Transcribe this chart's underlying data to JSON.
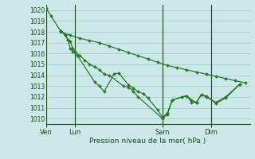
{
  "bg_color": "#cce8e8",
  "grid_color": "#99ccbb",
  "line_color": "#1a6b1a",
  "marker_color": "#2a7a2a",
  "xlabel": "Pression niveau de la mer( hPa )",
  "ylim": [
    1009.5,
    1020.5
  ],
  "yticks": [
    1010,
    1011,
    1012,
    1013,
    1014,
    1015,
    1016,
    1017,
    1018,
    1019,
    1020
  ],
  "xtick_labels": [
    "Ven",
    "Lun",
    "Sam",
    "Dim"
  ],
  "xtick_positions": [
    0,
    12,
    48,
    68
  ],
  "vline_positions": [
    0,
    12,
    48,
    68
  ],
  "xlim": [
    0,
    84
  ],
  "series": [
    [
      1020.2,
      1019.5,
      1018.1,
      1017.7,
      1017.3,
      1017.1,
      1016.5,
      1016.2,
      1015.8,
      1015.4,
      1015.0,
      1014.8,
      1014.5,
      1014.1,
      1014.0,
      1013.0,
      1012.9,
      1012.5,
      1012.0,
      1010.0,
      1010.4,
      1011.7,
      1012.0,
      1012.1,
      1011.7,
      1011.5,
      1012.2,
      1012.1,
      1011.4,
      1011.9,
      1013.2
    ],
    [
      1018.1,
      1017.7,
      1017.3,
      1016.5,
      1016.2,
      1015.8,
      1013.4,
      1013.0,
      1012.5,
      1014.1,
      1014.2,
      1013.1,
      1012.8,
      1012.5,
      1012.3,
      1011.9,
      1010.8,
      1010.1,
      1010.5,
      1011.7,
      1012.0,
      1012.1,
      1011.5,
      1011.5,
      1012.2,
      1012.0,
      1011.5,
      1012.0,
      1013.2
    ],
    [
      1018.0,
      1017.7,
      1017.4,
      1017.2,
      1017.0,
      1016.7,
      1016.4,
      1016.1,
      1015.8,
      1015.5,
      1015.2,
      1014.9,
      1014.7,
      1014.5,
      1014.3,
      1014.1,
      1013.9,
      1013.7,
      1013.5,
      1013.3
    ]
  ],
  "series_x": [
    [
      0,
      2,
      6,
      8,
      9,
      10,
      11,
      12,
      14,
      16,
      18,
      20,
      22,
      24,
      26,
      32,
      34,
      36,
      38,
      48,
      50,
      52,
      56,
      58,
      60,
      62,
      64,
      66,
      70,
      74,
      80
    ],
    [
      6,
      8,
      9,
      10,
      11,
      13,
      20,
      22,
      24,
      28,
      30,
      34,
      36,
      38,
      40,
      42,
      46,
      48,
      50,
      52,
      56,
      58,
      60,
      62,
      64,
      66,
      70,
      74,
      80
    ],
    [
      6,
      10,
      14,
      18,
      22,
      26,
      30,
      34,
      38,
      42,
      46,
      50,
      54,
      58,
      62,
      66,
      70,
      74,
      78,
      82
    ]
  ]
}
